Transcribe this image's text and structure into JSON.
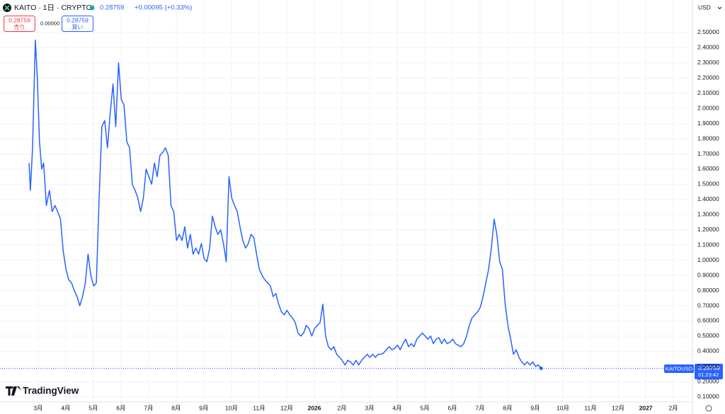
{
  "header": {
    "symbol": "KAITO · 1日 · CRYPTO",
    "change": "+0.00095 (+0.33%)",
    "sell": "売り",
    "buy": "買い",
    "spread": "0.00000",
    "currency": "USD",
    "ticker_tag": "KAITOUSD",
    "countdown": "01:23:42",
    "brand": "TradingView"
  },
  "chart_data": {
    "type": "line",
    "xlim": [
      -1.38,
      23.69
    ],
    "ylim": [
      0.066,
      2.714
    ],
    "grid": true,
    "xticks": [
      {
        "value": 0,
        "label": "3月"
      },
      {
        "value": 1,
        "label": "4月"
      },
      {
        "value": 2,
        "label": "5月"
      },
      {
        "value": 3,
        "label": "6月"
      },
      {
        "value": 4,
        "label": "7月"
      },
      {
        "value": 5,
        "label": "8月"
      },
      {
        "value": 6,
        "label": "9月"
      },
      {
        "value": 7,
        "label": "10月"
      },
      {
        "value": 8,
        "label": "11月"
      },
      {
        "value": 9,
        "label": "12月"
      },
      {
        "value": 10,
        "label": "2026"
      },
      {
        "value": 11,
        "label": "2月"
      },
      {
        "value": 12,
        "label": "3月"
      },
      {
        "value": 13,
        "label": "4月"
      },
      {
        "value": 14,
        "label": "5月"
      },
      {
        "value": 15,
        "label": "6月"
      },
      {
        "value": 16,
        "label": "7月"
      },
      {
        "value": 17,
        "label": "8月"
      },
      {
        "value": 18,
        "label": "9月"
      },
      {
        "value": 19,
        "label": "10月"
      },
      {
        "value": 20,
        "label": "11月"
      },
      {
        "value": 21,
        "label": "12月"
      },
      {
        "value": 22,
        "label": "2027"
      },
      {
        "value": 23,
        "label": "2月"
      }
    ],
    "yticks": [
      {
        "value": 0.1,
        "label": "0.10000"
      },
      {
        "value": 0.2,
        "label": "0.20000"
      },
      {
        "value": 0.3,
        "label": "0.30000"
      },
      {
        "value": 0.4,
        "label": "0.40000"
      },
      {
        "value": 0.5,
        "label": "0.50000"
      },
      {
        "value": 0.6,
        "label": "0.60000"
      },
      {
        "value": 0.7,
        "label": "0.70000"
      },
      {
        "value": 0.8,
        "label": "0.80000"
      },
      {
        "value": 0.9,
        "label": "0.90000"
      },
      {
        "value": 1.0,
        "label": "1.00000"
      },
      {
        "value": 1.1,
        "label": "1.10000"
      },
      {
        "value": 1.2,
        "label": "1.20000"
      },
      {
        "value": 1.3,
        "label": "1.30000"
      },
      {
        "value": 1.4,
        "label": "1.40000"
      },
      {
        "value": 1.5,
        "label": "1.50000"
      },
      {
        "value": 1.6,
        "label": "1.60000"
      },
      {
        "value": 1.7,
        "label": "1.70000"
      },
      {
        "value": 1.8,
        "label": "1.80000"
      },
      {
        "value": 1.9,
        "label": "1.90000"
      },
      {
        "value": 2.0,
        "label": "2.00000"
      },
      {
        "value": 2.1,
        "label": "2.10000"
      },
      {
        "value": 2.2,
        "label": "2.20000"
      },
      {
        "value": 2.3,
        "label": "2.30000"
      },
      {
        "value": 2.4,
        "label": "2.40000"
      },
      {
        "value": 2.5,
        "label": "2.50000"
      }
    ],
    "series": [
      {
        "color": "#2962ff",
        "x": [
          -0.33,
          -0.28,
          -0.2,
          -0.1,
          -0.03,
          0.05,
          0.13,
          0.2,
          0.3,
          0.41,
          0.51,
          0.61,
          0.71,
          0.81,
          0.91,
          1.01,
          1.11,
          1.21,
          1.31,
          1.41,
          1.51,
          1.61,
          1.71,
          1.81,
          1.91,
          2.01,
          2.11,
          2.21,
          2.31,
          2.41,
          2.51,
          2.61,
          2.71,
          2.81,
          2.91,
          3.01,
          3.11,
          3.21,
          3.31,
          3.41,
          3.51,
          3.61,
          3.71,
          3.81,
          3.91,
          4.01,
          4.11,
          4.21,
          4.31,
          4.41,
          4.51,
          4.61,
          4.71,
          4.81,
          4.91,
          5.01,
          5.11,
          5.21,
          5.31,
          5.41,
          5.51,
          5.61,
          5.71,
          5.81,
          5.91,
          6.01,
          6.11,
          6.21,
          6.31,
          6.41,
          6.51,
          6.61,
          6.71,
          6.81,
          6.91,
          7.01,
          7.11,
          7.21,
          7.31,
          7.41,
          7.51,
          7.61,
          7.71,
          7.81,
          7.91,
          8.01,
          8.11,
          8.21,
          8.31,
          8.41,
          8.51,
          8.61,
          8.71,
          8.81,
          8.91,
          9.01,
          9.11,
          9.21,
          9.31,
          9.41,
          9.51,
          9.61,
          9.71,
          9.81,
          9.91,
          10.01,
          10.11,
          10.21,
          10.31,
          10.41,
          10.51,
          10.61,
          10.71,
          10.81,
          10.91,
          11.01,
          11.11,
          11.21,
          11.31,
          11.41,
          11.51,
          11.61,
          11.71,
          11.81,
          11.91,
          12.01,
          12.11,
          12.21,
          12.31,
          12.41,
          12.51,
          12.61,
          12.71,
          12.81,
          12.91,
          13.01,
          13.11,
          13.21,
          13.31,
          13.41,
          13.51,
          13.61,
          13.71,
          13.81,
          13.91,
          14.01,
          14.11,
          14.21,
          14.31,
          14.41,
          14.51,
          14.61,
          14.71,
          14.81,
          14.91,
          15.01,
          15.11,
          15.21,
          15.31,
          15.41,
          15.51,
          15.61,
          15.71,
          15.81,
          15.91,
          16.01,
          16.11,
          16.21,
          16.31,
          16.41,
          16.51,
          16.61,
          16.71,
          16.81,
          16.91,
          17.01,
          17.11,
          17.21,
          17.31,
          17.41,
          17.51,
          17.61,
          17.71,
          17.81,
          17.91,
          18.01,
          18.11,
          18.21
        ],
        "values": [
          1.64,
          1.46,
          1.74,
          2.45,
          2.2,
          1.78,
          1.6,
          1.64,
          1.36,
          1.46,
          1.32,
          1.36,
          1.32,
          1.27,
          1.06,
          0.94,
          0.87,
          0.85,
          0.8,
          0.76,
          0.7,
          0.76,
          0.85,
          1.04,
          0.9,
          0.83,
          0.85,
          1.41,
          1.88,
          1.92,
          1.74,
          1.97,
          2.16,
          1.88,
          2.3,
          2.06,
          2.02,
          1.78,
          1.74,
          1.5,
          1.46,
          1.41,
          1.32,
          1.41,
          1.6,
          1.55,
          1.5,
          1.64,
          1.55,
          1.69,
          1.71,
          1.74,
          1.69,
          1.36,
          1.32,
          1.13,
          1.17,
          1.13,
          1.22,
          1.08,
          1.17,
          1.04,
          1.08,
          1.04,
          1.11,
          1.01,
          0.99,
          1.08,
          1.29,
          1.22,
          1.17,
          1.2,
          1.11,
          0.99,
          1.55,
          1.41,
          1.36,
          1.32,
          1.22,
          1.13,
          1.08,
          1.11,
          1.17,
          1.15,
          1.04,
          0.94,
          0.9,
          0.87,
          0.85,
          0.83,
          0.76,
          0.78,
          0.71,
          0.66,
          0.64,
          0.67,
          0.64,
          0.62,
          0.59,
          0.52,
          0.5,
          0.52,
          0.57,
          0.55,
          0.5,
          0.55,
          0.57,
          0.59,
          0.71,
          0.5,
          0.43,
          0.41,
          0.43,
          0.38,
          0.36,
          0.34,
          0.31,
          0.34,
          0.33,
          0.31,
          0.34,
          0.31,
          0.34,
          0.36,
          0.38,
          0.36,
          0.38,
          0.36,
          0.38,
          0.38,
          0.39,
          0.41,
          0.43,
          0.41,
          0.42,
          0.44,
          0.41,
          0.45,
          0.48,
          0.43,
          0.45,
          0.43,
          0.48,
          0.5,
          0.52,
          0.5,
          0.48,
          0.5,
          0.45,
          0.48,
          0.49,
          0.45,
          0.48,
          0.45,
          0.46,
          0.48,
          0.45,
          0.44,
          0.43,
          0.45,
          0.5,
          0.57,
          0.62,
          0.64,
          0.66,
          0.69,
          0.76,
          0.85,
          0.94,
          1.08,
          1.27,
          1.17,
          0.99,
          0.94,
          0.71,
          0.57,
          0.48,
          0.38,
          0.41,
          0.36,
          0.33,
          0.31,
          0.33,
          0.31,
          0.33,
          0.3,
          0.31,
          0.28759
        ]
      }
    ]
  }
}
